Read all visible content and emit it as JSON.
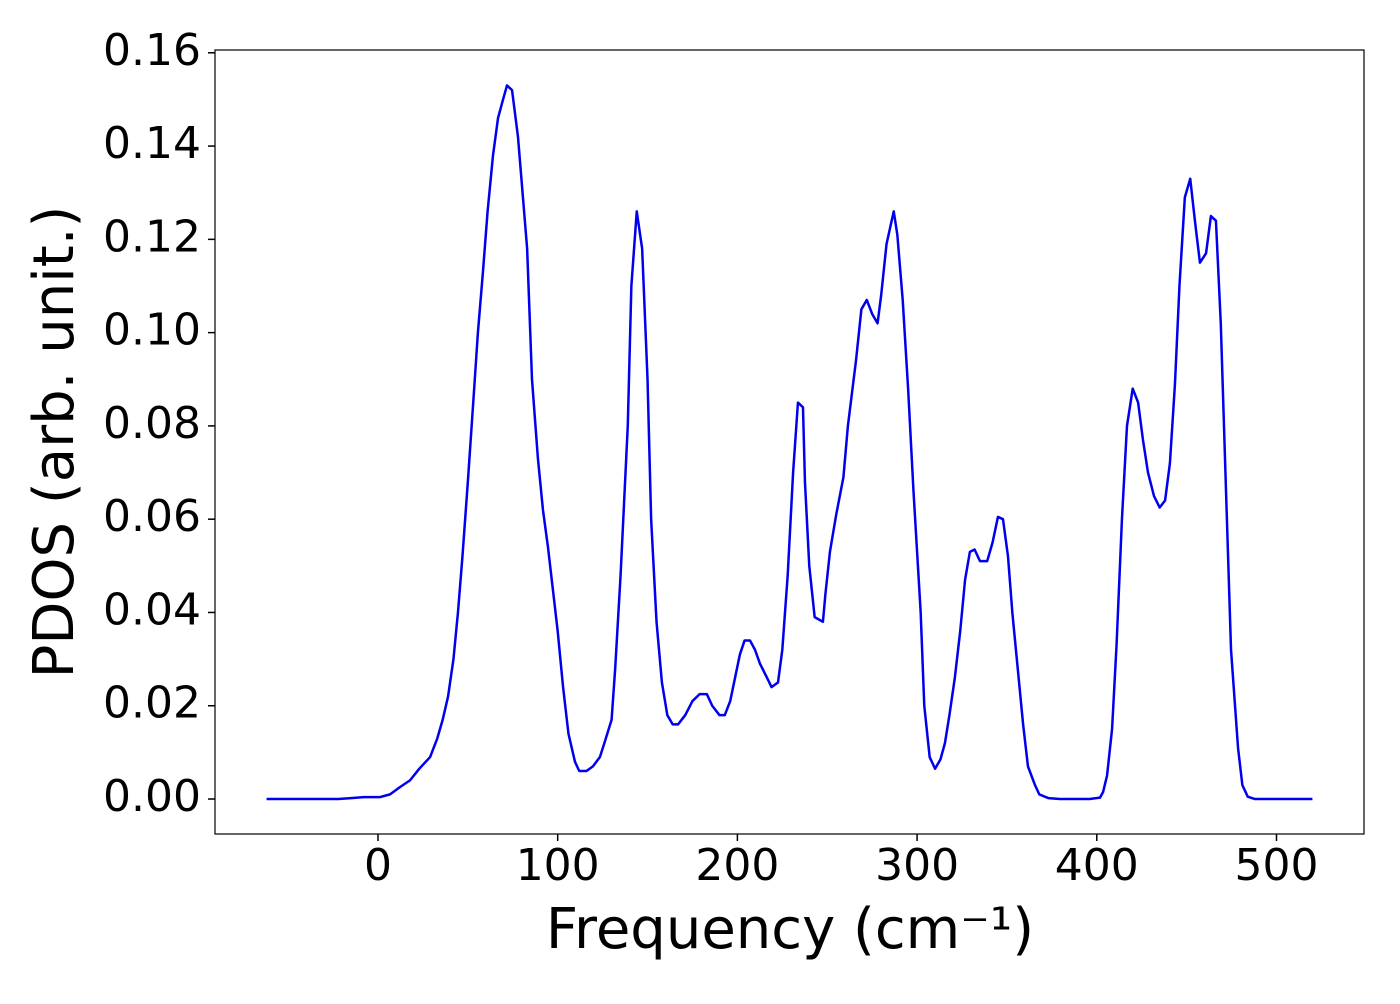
{
  "chart_data": {
    "type": "line",
    "xlabel": "Frequency (cm⁻¹)",
    "ylabel": "PDOS (arb. unit.)",
    "x": [
      -62,
      -22,
      -15,
      -8,
      -3,
      1,
      6.7,
      12,
      17.8,
      23,
      29,
      33,
      36,
      39,
      42,
      44.5,
      47,
      50,
      53,
      55.6,
      58.4,
      61,
      64,
      66.8,
      69.6,
      71.8,
      74.6,
      77.9,
      83,
      85.7,
      89,
      91.8,
      94.6,
      97,
      100,
      103,
      106,
      109.6,
      112,
      116,
      119.6,
      123.5,
      126,
      130,
      132,
      135,
      139,
      141,
      144,
      147,
      150,
      152,
      155,
      158,
      161,
      164,
      167,
      171,
      175,
      179,
      183,
      186,
      190,
      193,
      196,
      198.7,
      201.4,
      204,
      207,
      209.8,
      212.6,
      216.5,
      219,
      222.6,
      225,
      228,
      231,
      233.7,
      236.5,
      237.6,
      240,
      243,
      247.6,
      249,
      251.5,
      255,
      259,
      261.5,
      266,
      269,
      272,
      275,
      278,
      280,
      283,
      287,
      289,
      292,
      295,
      298,
      302,
      304,
      307,
      310,
      313,
      315.5,
      318,
      321,
      324,
      326.7,
      329.4,
      332,
      335,
      339,
      342,
      345,
      347.8,
      350.6,
      353,
      356,
      359,
      361.7,
      365.6,
      368,
      373,
      379.5,
      396,
      401.8,
      403.5,
      405.7,
      408.5,
      411,
      414,
      416.8,
      420,
      423,
      425.7,
      428.5,
      431.8,
      435,
      438,
      440.7,
      443.5,
      446,
      449,
      452,
      454.6,
      457.4,
      460.8,
      463.5,
      466.3,
      469,
      472,
      474.7,
      478.6,
      481,
      484,
      488,
      520
    ],
    "series": [
      {
        "color": "#0000ee",
        "values": [
          0,
          0,
          0.0002,
          0.0004,
          0.0004,
          0.0004,
          0.001,
          0.0025,
          0.004,
          0.0065,
          0.009,
          0.013,
          0.017,
          0.022,
          0.03,
          0.04,
          0.052,
          0.068,
          0.085,
          0.1,
          0.113,
          0.126,
          0.138,
          0.146,
          0.15,
          0.153,
          0.152,
          0.142,
          0.118,
          0.09,
          0.073,
          0.062,
          0.054,
          0.046,
          0.036,
          0.024,
          0.014,
          0.008,
          0.006,
          0.006,
          0.007,
          0.009,
          0.012,
          0.017,
          0.028,
          0.048,
          0.08,
          0.11,
          0.126,
          0.118,
          0.09,
          0.06,
          0.038,
          0.025,
          0.018,
          0.016,
          0.016,
          0.018,
          0.021,
          0.0225,
          0.0225,
          0.02,
          0.018,
          0.018,
          0.021,
          0.026,
          0.031,
          0.034,
          0.034,
          0.032,
          0.029,
          0.026,
          0.024,
          0.025,
          0.032,
          0.048,
          0.07,
          0.085,
          0.084,
          0.068,
          0.05,
          0.039,
          0.038,
          0.044,
          0.053,
          0.061,
          0.069,
          0.08,
          0.094,
          0.105,
          0.107,
          0.104,
          0.102,
          0.108,
          0.119,
          0.126,
          0.121,
          0.107,
          0.088,
          0.066,
          0.04,
          0.02,
          0.009,
          0.0065,
          0.0085,
          0.012,
          0.018,
          0.026,
          0.036,
          0.047,
          0.053,
          0.0535,
          0.051,
          0.051,
          0.055,
          0.0605,
          0.06,
          0.052,
          0.04,
          0.028,
          0.016,
          0.007,
          0.003,
          0.001,
          0.0002,
          0,
          0,
          0.0003,
          0.0015,
          0.005,
          0.015,
          0.033,
          0.06,
          0.08,
          0.088,
          0.085,
          0.077,
          0.07,
          0.065,
          0.0625,
          0.064,
          0.072,
          0.089,
          0.11,
          0.129,
          0.133,
          0.124,
          0.115,
          0.117,
          0.125,
          0.124,
          0.102,
          0.065,
          0.032,
          0.011,
          0.003,
          0.0005,
          0,
          0
        ]
      }
    ],
    "xlim": [
      -90.7,
      548.7
    ],
    "ylim": [
      -0.0075,
      0.1606
    ],
    "xticks": [
      0,
      100,
      200,
      300,
      400,
      500
    ],
    "yticks": [
      {
        "value": 0,
        "label": "0.00"
      },
      {
        "value": 0.02,
        "label": "0.02"
      },
      {
        "value": 0.04,
        "label": "0.04"
      },
      {
        "value": 0.06,
        "label": "0.06"
      },
      {
        "value": 0.08,
        "label": "0.08"
      },
      {
        "value": 0.1,
        "label": "0.10"
      },
      {
        "value": 0.12,
        "label": "0.12"
      },
      {
        "value": 0.14,
        "label": "0.14"
      },
      {
        "value": 0.16,
        "label": "0.16"
      }
    ],
    "grid": false
  }
}
